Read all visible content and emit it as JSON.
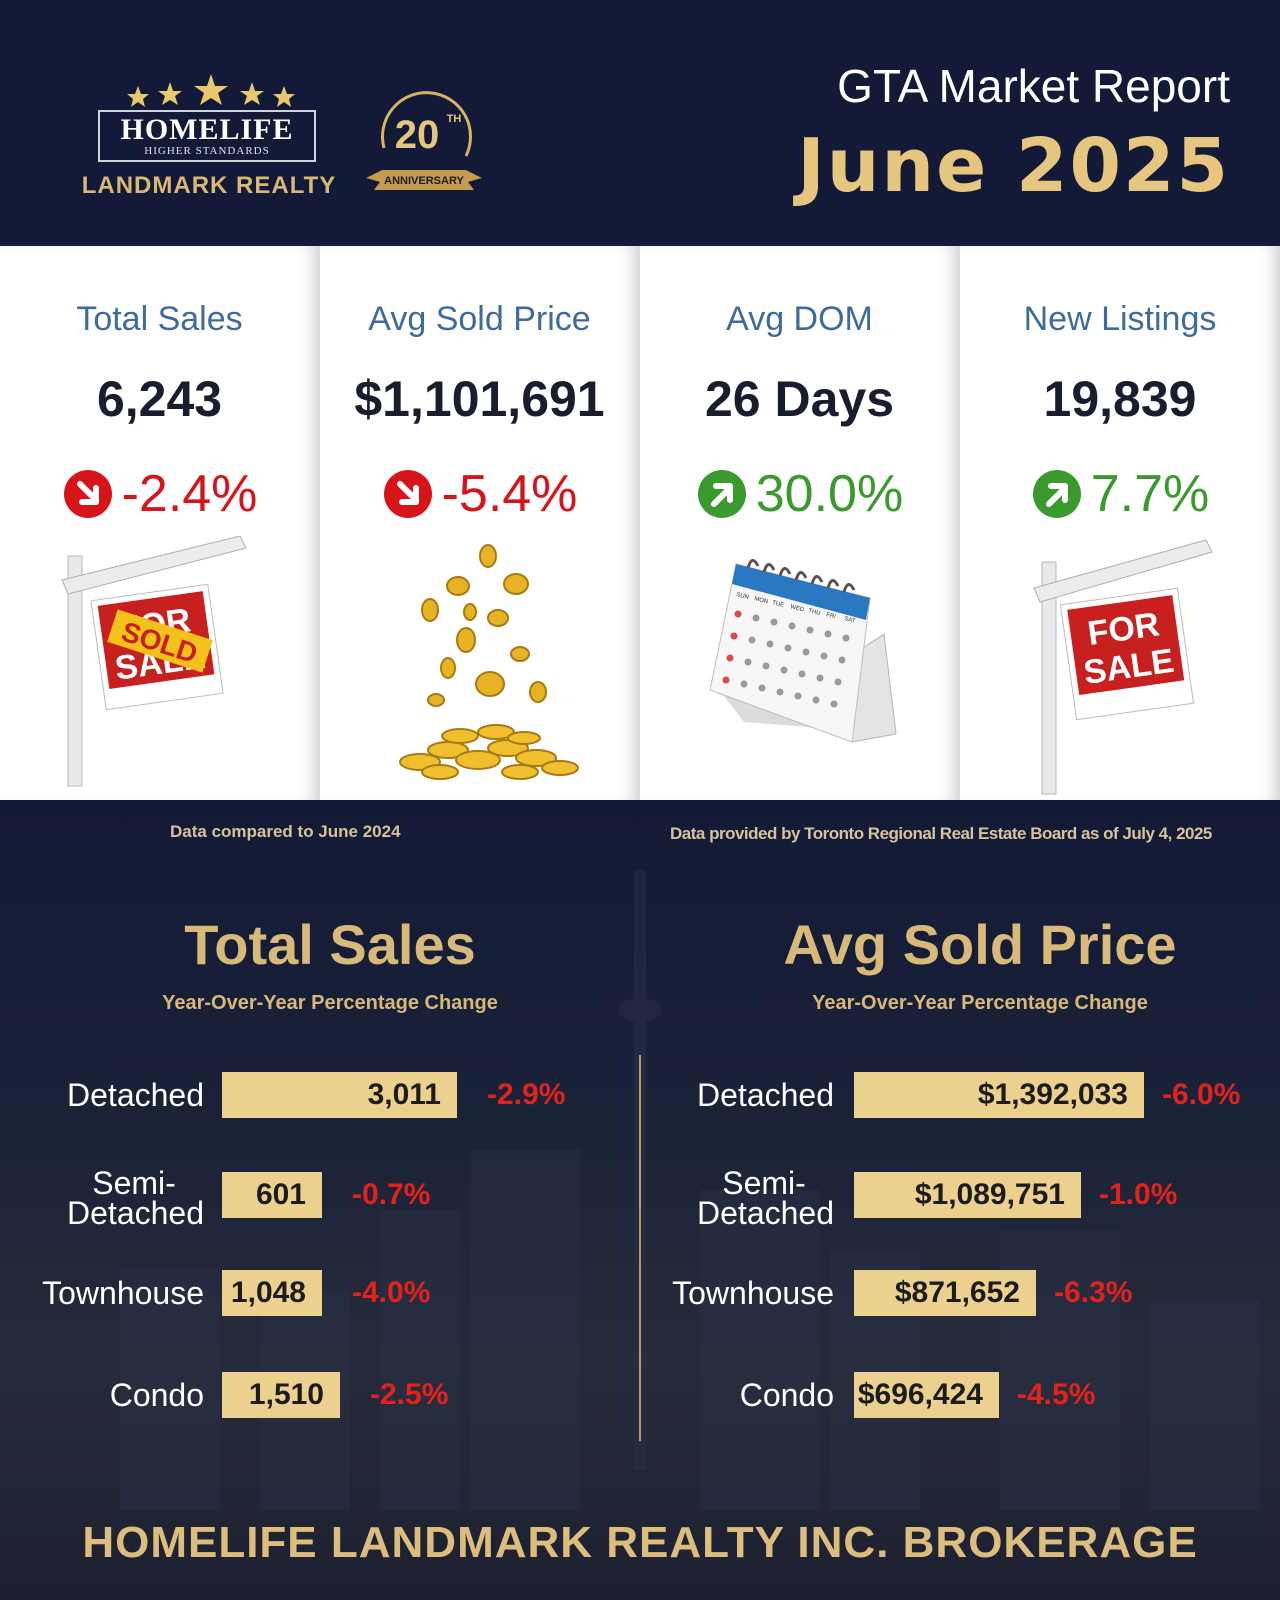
{
  "header": {
    "brand_name": "HOMELIFE",
    "brand_tagline": "HIGHER STANDARDS",
    "brand_office": "LANDMARK REALTY",
    "anniversary_number": "20",
    "anniversary_suffix": "TH",
    "anniversary_label": "ANNIVERSARY",
    "report_title": "GTA Market Report",
    "report_period": "June 2025"
  },
  "kpis": [
    {
      "label": "Total Sales",
      "value": "6,243",
      "change": "-2.4%",
      "direction": "down",
      "color": "#d7141a",
      "icon": "down-arrow-icon"
    },
    {
      "label": "Avg Sold Price",
      "value": "$1,101,691",
      "change": "-5.4%",
      "direction": "down",
      "color": "#d7141a",
      "icon": "down-arrow-icon"
    },
    {
      "label": "Avg DOM",
      "value": "26 Days",
      "change": "30.0%",
      "direction": "up",
      "color": "#3b9a2e",
      "icon": "up-arrow-icon"
    },
    {
      "label": "New Listings",
      "value": "19,839",
      "change": "7.7%",
      "direction": "up",
      "color": "#3b9a2e",
      "icon": "up-arrow-icon"
    }
  ],
  "illustrations": {
    "sold_sign_text_top": "FOR",
    "sold_sign_text_bottom": "SALE",
    "sold_sticker": "SOLD",
    "calendar_days": [
      "SUN",
      "MON",
      "TUE",
      "WED",
      "THU",
      "FRI",
      "SAT"
    ],
    "sale_sign_top": "FOR",
    "sale_sign_bottom": "SALE"
  },
  "notes": {
    "comparison": "Data compared to June 2024",
    "source": "Data provided by Toronto Regional Real Estate Board as of  July 4, 2025"
  },
  "sections": {
    "sales_title": "Total Sales",
    "sales_subtitle": "Year-Over-Year Percentage Change",
    "price_title": "Avg Sold Price",
    "price_subtitle": "Year-Over-Year Percentage Change"
  },
  "chart_data": [
    {
      "type": "bar",
      "title": "Total Sales",
      "subtitle": "Year-Over-Year Percentage Change",
      "categories": [
        "Detached",
        "Semi-Detached",
        "Townhouse",
        "Condo"
      ],
      "values": [
        3011,
        601,
        1048,
        1510
      ],
      "value_labels": [
        "3,011",
        "601",
        "1,048",
        "1,510"
      ],
      "changes": [
        "-2.9%",
        "-0.7%",
        "-4.0%",
        "-2.5%"
      ],
      "orientation": "horizontal",
      "bar_color": "#ecd08d"
    },
    {
      "type": "bar",
      "title": "Avg Sold Price",
      "subtitle": "Year-Over-Year Percentage Change",
      "categories": [
        "Detached",
        "Semi-Detached",
        "Townhouse",
        "Condo"
      ],
      "values": [
        1392033,
        1089751,
        871652,
        696424
      ],
      "value_labels": [
        "$1,392,033",
        "$1,089,751",
        "$871,652",
        "$696,424"
      ],
      "changes": [
        "-6.0%",
        "-1.0%",
        "-6.3%",
        "-4.5%"
      ],
      "orientation": "horizontal",
      "bar_color": "#ecd08d"
    }
  ],
  "footer": {
    "brokerage": "HOMELIFE LANDMARK REALTY INC. BROKERAGE"
  },
  "colors": {
    "navy": "#131a37",
    "gold": "#e6c67e",
    "kpi_label": "#3e6b9b",
    "negative": "#e3221b",
    "positive": "#3b9a2e"
  }
}
